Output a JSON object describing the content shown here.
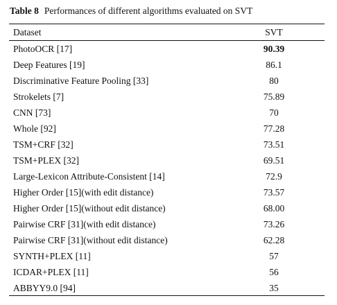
{
  "caption": {
    "label": "Table 8",
    "text": "Performances of different algorithms evaluated on SVT"
  },
  "header": {
    "col1": "Dataset",
    "col2": "SVT"
  },
  "rows": [
    {
      "name": "PhotoOCR [17]",
      "value": "90.39",
      "best": true
    },
    {
      "name": "Deep Features [19]",
      "value": "86.1"
    },
    {
      "name": "Discriminative Feature Pooling [33]",
      "value": "80"
    },
    {
      "name": "Strokelets [7]",
      "value": "75.89"
    },
    {
      "name": "CNN [73]",
      "value": "70"
    },
    {
      "name": "Whole [92]",
      "value": "77.28"
    },
    {
      "name": "TSM+CRF [32]",
      "value": "73.51"
    },
    {
      "name": "TSM+PLEX [32]",
      "value": "69.51"
    },
    {
      "name": "Large-Lexicon Attribute-Consistent [14]",
      "value": "72.9"
    },
    {
      "name": "Higher Order [15](with edit distance)",
      "value": "73.57"
    },
    {
      "name": "Higher Order [15](without edit distance)",
      "value": "68.00"
    },
    {
      "name": "Pairwise CRF [31](with edit distance)",
      "value": "73.26"
    },
    {
      "name": "Pairwise CRF [31](without edit distance)",
      "value": "62.28"
    },
    {
      "name": "SYNTH+PLEX [11]",
      "value": "57"
    },
    {
      "name": "ICDAR+PLEX [11]",
      "value": "56"
    },
    {
      "name": "ABBYY9.0 [94]",
      "value": "35"
    }
  ]
}
